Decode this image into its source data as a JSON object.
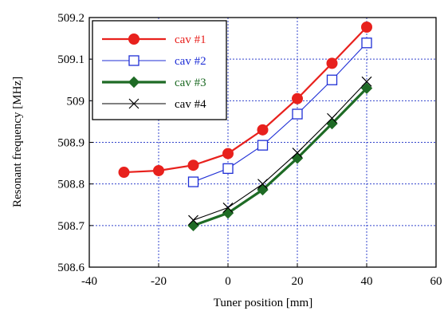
{
  "chart_data": {
    "type": "line",
    "title": "",
    "xlabel": "Tuner position [mm]",
    "ylabel": "Resonant frequency [MHz]",
    "xlim": [
      -40,
      60
    ],
    "ylim": [
      508.6,
      509.2
    ],
    "xticks": [
      -40,
      -20,
      0,
      20,
      40,
      60
    ],
    "xtick_labels": [
      "-40",
      "-20",
      "0",
      "20",
      "40",
      "60"
    ],
    "yticks": [
      508.6,
      508.7,
      508.8,
      508.9,
      509.0,
      509.1,
      509.2
    ],
    "ytick_labels": [
      "508.6",
      "508.7",
      "508.8",
      "508.9",
      "509",
      "509.1",
      "509.2"
    ],
    "grid": true,
    "legend_position": "top-left",
    "series": [
      {
        "name": "cav #1",
        "color": "#e8211d",
        "marker": "filled-circle",
        "x": [
          -30,
          -20,
          -10,
          0,
          10,
          20,
          30,
          40
        ],
        "y": [
          508.828,
          508.832,
          508.845,
          508.873,
          508.93,
          509.005,
          509.09,
          509.177
        ]
      },
      {
        "name": "cav #2",
        "color": "#1f2fd6",
        "marker": "open-square",
        "x": [
          -10,
          0,
          10,
          20,
          30,
          40
        ],
        "y": [
          508.805,
          508.837,
          508.893,
          508.968,
          509.05,
          509.139
        ]
      },
      {
        "name": "cav #3",
        "color": "#1e6b25",
        "marker": "filled-diamond",
        "x": [
          -10,
          0,
          10,
          20,
          30,
          40
        ],
        "y": [
          508.7,
          508.73,
          508.786,
          508.862,
          508.945,
          509.03
        ]
      },
      {
        "name": "cav #4",
        "color": "#000000",
        "marker": "cross",
        "x": [
          -10,
          0,
          10,
          20,
          30,
          40
        ],
        "y": [
          508.713,
          508.743,
          508.8,
          508.875,
          508.958,
          509.046
        ]
      }
    ]
  }
}
